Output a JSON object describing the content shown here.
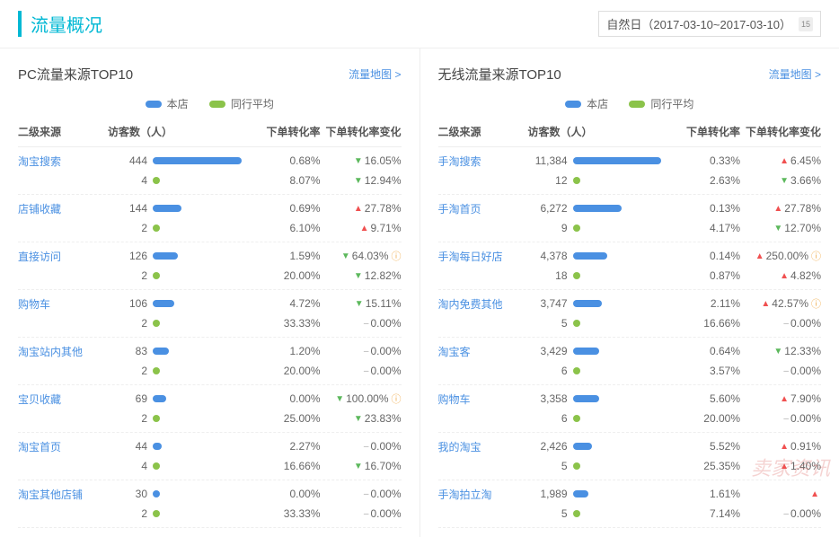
{
  "title": "流量概况",
  "date_label": "自然日（2017-03-10~2017-03-10）",
  "cal_day": "15",
  "legend": {
    "shop": "本店",
    "peer": "同行平均",
    "shop_color": "#4a90e2",
    "peer_color": "#8bc34a"
  },
  "columns": {
    "source": "二级来源",
    "visitors": "访客数（人）",
    "rate": "下单转化率",
    "change": "下单转化率变化"
  },
  "map_link": "流量地图 >",
  "pc": {
    "title": "PC流量来源TOP10",
    "max": 450,
    "rows": [
      {
        "name": "淘宝搜索",
        "shop": {
          "v": 444,
          "rate": "0.68%",
          "ch": "16.05%",
          "dir": "down"
        },
        "peer": {
          "v": 4,
          "rate": "8.07%",
          "ch": "12.94%",
          "dir": "down"
        }
      },
      {
        "name": "店铺收藏",
        "shop": {
          "v": 144,
          "rate": "0.69%",
          "ch": "27.78%",
          "dir": "up"
        },
        "peer": {
          "v": 2,
          "rate": "6.10%",
          "ch": "9.71%",
          "dir": "up"
        }
      },
      {
        "name": "直接访问",
        "shop": {
          "v": 126,
          "rate": "1.59%",
          "ch": "64.03%",
          "dir": "down",
          "warn": true
        },
        "peer": {
          "v": 2,
          "rate": "20.00%",
          "ch": "12.82%",
          "dir": "down"
        }
      },
      {
        "name": "购物车",
        "shop": {
          "v": 106,
          "rate": "4.72%",
          "ch": "15.11%",
          "dir": "down"
        },
        "peer": {
          "v": 2,
          "rate": "33.33%",
          "ch": "0.00%",
          "dir": "flat"
        }
      },
      {
        "name": "淘宝站内其他",
        "shop": {
          "v": 83,
          "rate": "1.20%",
          "ch": "0.00%",
          "dir": "flat"
        },
        "peer": {
          "v": 2,
          "rate": "20.00%",
          "ch": "0.00%",
          "dir": "flat"
        }
      },
      {
        "name": "宝贝收藏",
        "shop": {
          "v": 69,
          "rate": "0.00%",
          "ch": "100.00%",
          "dir": "down",
          "warn": true
        },
        "peer": {
          "v": 2,
          "rate": "25.00%",
          "ch": "23.83%",
          "dir": "down"
        }
      },
      {
        "name": "淘宝首页",
        "shop": {
          "v": 44,
          "rate": "2.27%",
          "ch": "0.00%",
          "dir": "flat"
        },
        "peer": {
          "v": 4,
          "rate": "16.66%",
          "ch": "16.70%",
          "dir": "down"
        }
      },
      {
        "name": "淘宝其他店铺",
        "shop": {
          "v": 30,
          "rate": "0.00%",
          "ch": "0.00%",
          "dir": "flat"
        },
        "peer": {
          "v": 2,
          "rate": "33.33%",
          "ch": "0.00%",
          "dir": "flat"
        }
      }
    ]
  },
  "mobile": {
    "title": "无线流量来源TOP10",
    "max": 11500,
    "rows": [
      {
        "name": "手淘搜索",
        "shop": {
          "v": 11384,
          "rate": "0.33%",
          "ch": "6.45%",
          "dir": "up"
        },
        "peer": {
          "v": 12,
          "rate": "2.63%",
          "ch": "3.66%",
          "dir": "down"
        }
      },
      {
        "name": "手淘首页",
        "shop": {
          "v": 6272,
          "rate": "0.13%",
          "ch": "27.78%",
          "dir": "up"
        },
        "peer": {
          "v": 9,
          "rate": "4.17%",
          "ch": "12.70%",
          "dir": "down"
        }
      },
      {
        "name": "手淘每日好店",
        "shop": {
          "v": 4378,
          "rate": "0.14%",
          "ch": "250.00%",
          "dir": "up",
          "warn": true
        },
        "peer": {
          "v": 18,
          "rate": "0.87%",
          "ch": "4.82%",
          "dir": "up"
        }
      },
      {
        "name": "淘内免费其他",
        "shop": {
          "v": 3747,
          "rate": "2.11%",
          "ch": "42.57%",
          "dir": "up",
          "warn": true
        },
        "peer": {
          "v": 5,
          "rate": "16.66%",
          "ch": "0.00%",
          "dir": "flat"
        }
      },
      {
        "name": "淘宝客",
        "shop": {
          "v": 3429,
          "rate": "0.64%",
          "ch": "12.33%",
          "dir": "down"
        },
        "peer": {
          "v": 6,
          "rate": "3.57%",
          "ch": "0.00%",
          "dir": "flat"
        }
      },
      {
        "name": "购物车",
        "shop": {
          "v": 3358,
          "rate": "5.60%",
          "ch": "7.90%",
          "dir": "up"
        },
        "peer": {
          "v": 6,
          "rate": "20.00%",
          "ch": "0.00%",
          "dir": "flat"
        }
      },
      {
        "name": "我的淘宝",
        "shop": {
          "v": 2426,
          "rate": "5.52%",
          "ch": "0.91%",
          "dir": "up"
        },
        "peer": {
          "v": 5,
          "rate": "25.35%",
          "ch": "1.40%",
          "dir": "up"
        }
      },
      {
        "name": "手淘拍立淘",
        "shop": {
          "v": 1989,
          "rate": "1.61%",
          "ch": "",
          "dir": "up"
        },
        "peer": {
          "v": 5,
          "rate": "7.14%",
          "ch": "0.00%",
          "dir": "flat"
        }
      }
    ]
  },
  "watermark": "卖家资讯"
}
